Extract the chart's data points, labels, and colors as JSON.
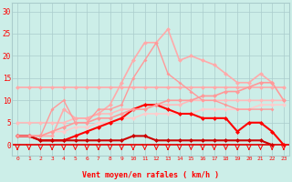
{
  "x": [
    0,
    1,
    2,
    3,
    4,
    5,
    6,
    7,
    8,
    9,
    10,
    11,
    12,
    13,
    14,
    15,
    16,
    17,
    18,
    19,
    20,
    21,
    22,
    23
  ],
  "lines": [
    {
      "y": [
        13,
        13,
        13,
        13,
        13,
        13,
        13,
        13,
        13,
        13,
        13,
        13,
        13,
        13,
        13,
        13,
        13,
        13,
        13,
        13,
        13,
        13,
        13,
        13
      ],
      "color": "#ffaaaa",
      "lw": 1.2,
      "ms": 2.5
    },
    {
      "y": [
        5,
        5,
        5,
        5,
        5,
        6,
        6,
        7,
        7,
        8,
        8,
        9,
        9,
        9,
        9,
        10,
        10,
        10,
        10,
        10,
        10,
        10,
        10,
        10
      ],
      "color": "#ffbbbb",
      "lw": 1.2,
      "ms": 2.5
    },
    {
      "y": [
        2,
        2,
        2,
        3,
        3,
        4,
        4,
        5,
        5,
        6,
        6,
        7,
        7,
        7,
        7,
        7,
        8,
        8,
        8,
        8,
        8,
        9,
        9,
        9
      ],
      "color": "#ffcccc",
      "lw": 1.2,
      "ms": 2.5
    },
    {
      "y": [
        2,
        2,
        2,
        2,
        8,
        6,
        6,
        7,
        9,
        14,
        19,
        23,
        23,
        26,
        19,
        20,
        19,
        18,
        16,
        14,
        14,
        16,
        14,
        null
      ],
      "color": "#ffaaaa",
      "lw": 1.2,
      "ms": 2.5
    },
    {
      "y": [
        2,
        2,
        2,
        8,
        10,
        5,
        5,
        8,
        8,
        9,
        15,
        19,
        23,
        16,
        14,
        12,
        10,
        10,
        9,
        8,
        8,
        8,
        8,
        null
      ],
      "color": "#ff9999",
      "lw": 1.0,
      "ms": 2.0
    },
    {
      "y": [
        2,
        2,
        1,
        1,
        1,
        2,
        3,
        4,
        5,
        6,
        8,
        9,
        9,
        8,
        7,
        7,
        6,
        6,
        6,
        3,
        5,
        5,
        3,
        0
      ],
      "color": "#ff0000",
      "lw": 1.5,
      "ms": 2.5
    },
    {
      "y": [
        2,
        2,
        1,
        1,
        1,
        1,
        1,
        1,
        1,
        1,
        2,
        2,
        1,
        1,
        1,
        1,
        1,
        1,
        1,
        1,
        1,
        1,
        0,
        null
      ],
      "color": "#cc0000",
      "lw": 1.5,
      "ms": 2.5
    },
    {
      "y": [
        2,
        2,
        2,
        3,
        4,
        5,
        5,
        6,
        6,
        7,
        8,
        8,
        9,
        10,
        10,
        10,
        11,
        11,
        12,
        12,
        13,
        14,
        14,
        10
      ],
      "color": "#ff9999",
      "lw": 1.2,
      "ms": 2.5
    }
  ],
  "ylim": [
    -2.5,
    32
  ],
  "yticks": [
    0,
    5,
    10,
    15,
    20,
    25,
    30
  ],
  "xlabel": "Vent moyen/en rafales ( km/h )",
  "bg_color": "#cceee8",
  "grid_color": "#aacccc",
  "tick_color": "#ff0000",
  "label_color": "#ff0000",
  "arrow_color": "#ff0000"
}
